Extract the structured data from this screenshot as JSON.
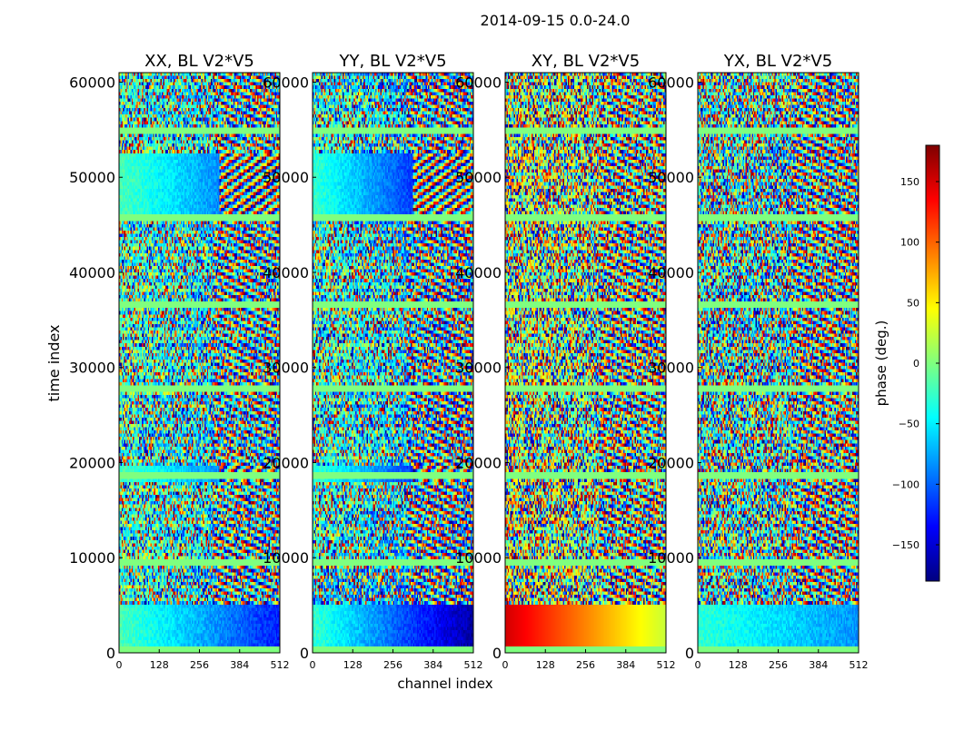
{
  "chart_data": {
    "type": "heatmap",
    "title": "2014-09-15 0.0-24.0",
    "xlabel": "channel index",
    "ylabel": "time index",
    "x_range": [
      0,
      512
    ],
    "y_range": [
      0,
      61000
    ],
    "x_ticks": [
      "0",
      "128",
      "256",
      "384",
      "512"
    ],
    "y_ticks": [
      "0",
      "10000",
      "20000",
      "30000",
      "40000",
      "50000",
      "60000"
    ],
    "panels": [
      {
        "title": "XX, BL V2*V5"
      },
      {
        "title": "YY, BL V2*V5"
      },
      {
        "title": "XY, BL V2*V5"
      },
      {
        "title": "YX, BL V2*V5"
      }
    ],
    "colorbar": {
      "label": "phase (deg.)",
      "range": [
        -180,
        180
      ],
      "ticks": [
        "150",
        "100",
        "50",
        "0",
        "−50",
        "−100",
        "−150"
      ],
      "colormap": "jet",
      "stops": [
        "#00007f",
        "#0000ff",
        "#007fff",
        "#00ffff",
        "#7fff7f",
        "#ffff00",
        "#ff7f00",
        "#ff0000",
        "#7f0000"
      ]
    }
  }
}
